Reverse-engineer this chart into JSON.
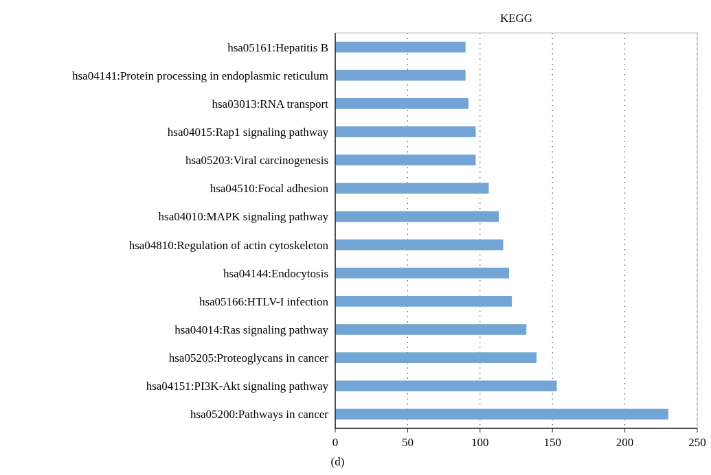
{
  "chart_data": {
    "type": "bar",
    "orientation": "horizontal",
    "title": "KEGG",
    "categories": [
      "hsa05161:Hepatitis B",
      "hsa04141:Protein processing in endoplasmic reticulum",
      "hsa03013:RNA transport",
      "hsa04015:Rap1 signaling pathway",
      "hsa05203:Viral carcinogenesis",
      "hsa04510:Focal adhesion",
      "hsa04010:MAPK signaling pathway",
      "hsa04810:Regulation of actin cytoskeleton",
      "hsa04144:Endocytosis",
      "hsa05166:HTLV-I infection",
      "hsa04014:Ras signaling pathway",
      "hsa05205:Proteoglycans in cancer",
      "hsa04151:PI3K-Akt signaling pathway",
      "hsa05200:Pathways in cancer"
    ],
    "values": [
      90,
      90,
      92,
      97,
      97,
      106,
      113,
      116,
      120,
      122,
      132,
      139,
      153,
      230
    ],
    "color": "#72a5d5",
    "xlim": [
      0,
      250
    ],
    "xticks": [
      0,
      50,
      100,
      150,
      200,
      250
    ],
    "grid": "x",
    "annotations": [
      "(d)"
    ]
  }
}
